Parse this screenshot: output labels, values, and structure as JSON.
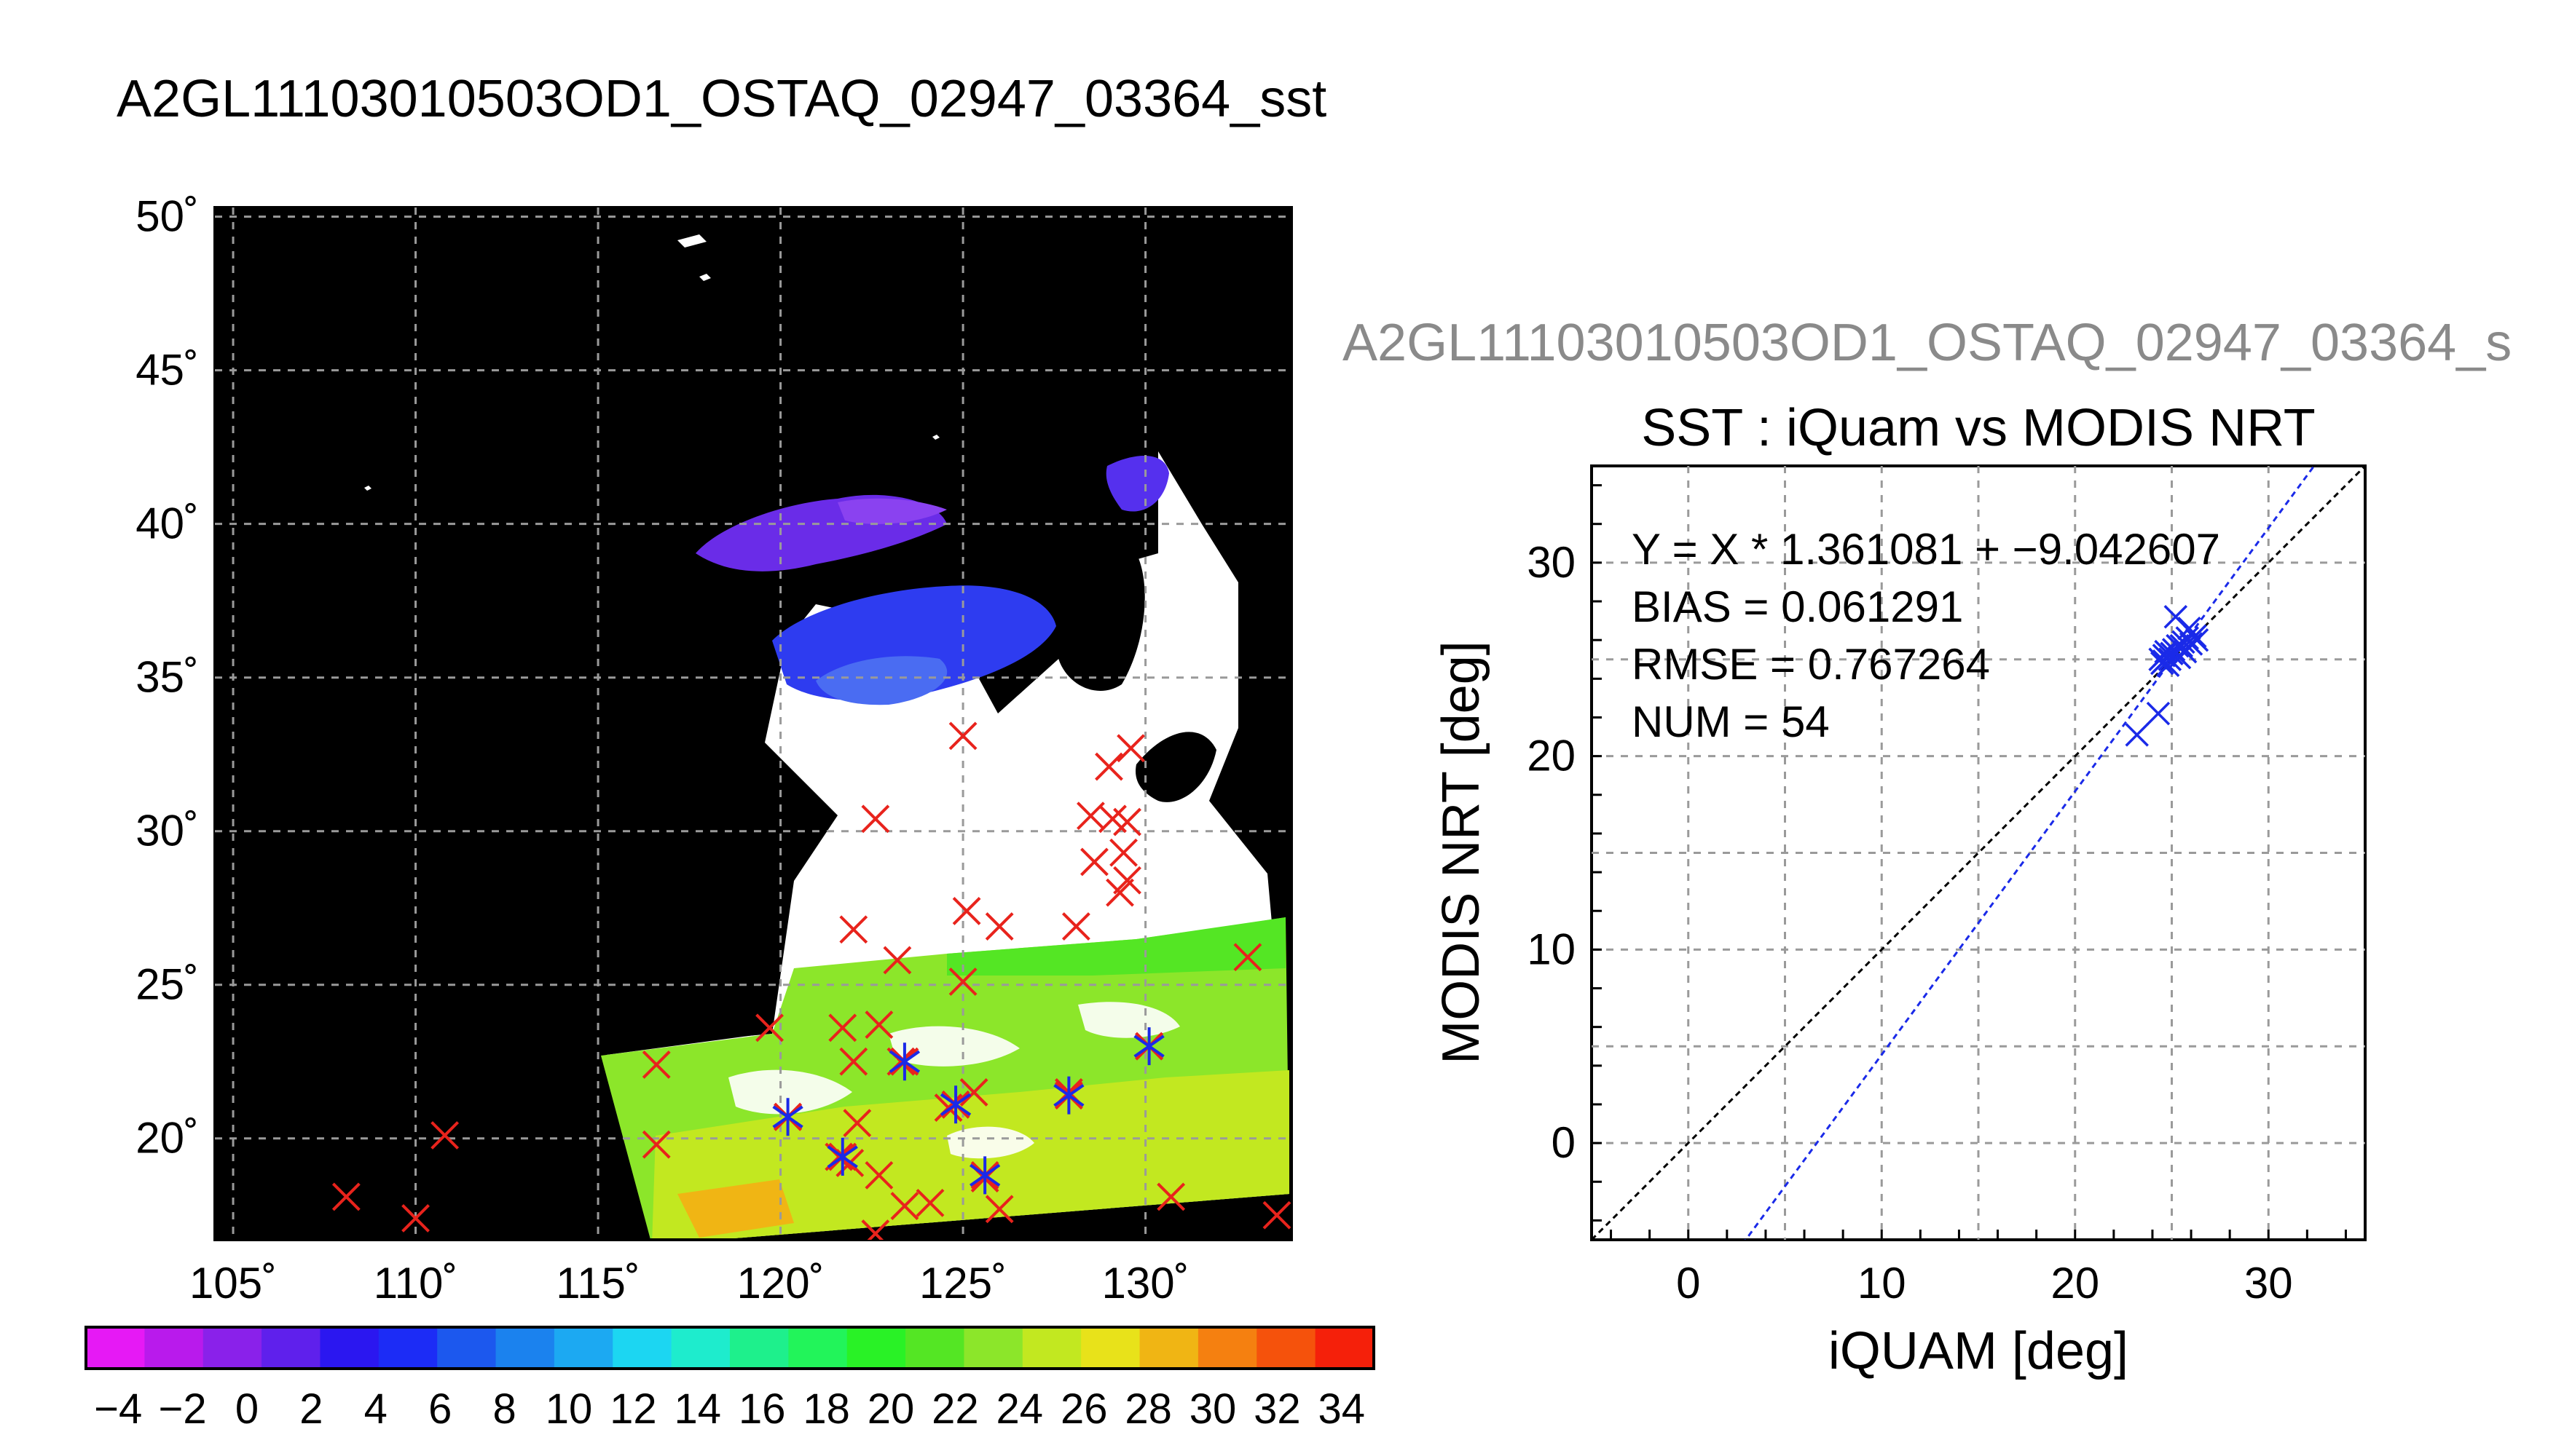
{
  "main_title": "A2GL11103010503OD1_OSTAQ_02947_03364_sst",
  "right_title": "A2GL11103010503OD1_OSTAQ_02947_03364_s",
  "colors": {
    "land": "#000000",
    "cloud": "#ffffff",
    "iquam_marker": "#e8231c",
    "match_marker": "#1a2ae8",
    "fit_line": "#1a2ae8",
    "one_to_one": "#000000",
    "grid": "#9a9a9a"
  },
  "chart_data": [
    {
      "type": "map",
      "lon_ticks": [
        "105˚",
        "110˚",
        "115˚",
        "120˚",
        "125˚",
        "130˚"
      ],
      "lat_ticks": [
        "50˚",
        "45˚",
        "40˚",
        "35˚",
        "30˚",
        "25˚",
        "20˚"
      ],
      "lon_range": [
        104.5,
        134
      ],
      "lat_range": [
        16.7,
        50.3
      ],
      "grid": true,
      "iquam_points": [
        [
          125.0,
          33.1
        ],
        [
          122.6,
          30.4
        ],
        [
          129.0,
          32.1
        ],
        [
          129.6,
          32.7
        ],
        [
          128.5,
          30.5
        ],
        [
          129.1,
          30.4
        ],
        [
          129.5,
          30.3
        ],
        [
          128.6,
          29.0
        ],
        [
          129.4,
          29.3
        ],
        [
          129.3,
          28.0
        ],
        [
          129.5,
          28.4
        ],
        [
          125.1,
          27.4
        ],
        [
          126.0,
          26.9
        ],
        [
          122.0,
          26.8
        ],
        [
          128.1,
          26.9
        ],
        [
          123.2,
          25.8
        ],
        [
          125.0,
          25.1
        ],
        [
          132.8,
          25.9
        ],
        [
          119.7,
          23.6
        ],
        [
          121.7,
          23.6
        ],
        [
          122.7,
          23.7
        ],
        [
          116.6,
          22.4
        ],
        [
          122.0,
          22.5
        ],
        [
          123.3,
          22.5
        ],
        [
          125.3,
          21.5
        ],
        [
          124.6,
          21.0
        ],
        [
          120.2,
          20.7
        ],
        [
          122.1,
          20.5
        ],
        [
          116.6,
          19.8
        ],
        [
          110.8,
          20.1
        ],
        [
          121.6,
          19.4
        ],
        [
          121.9,
          19.2
        ],
        [
          122.7,
          18.8
        ],
        [
          108.1,
          18.1
        ],
        [
          110.0,
          17.4
        ],
        [
          123.4,
          17.8
        ],
        [
          124.1,
          17.9
        ],
        [
          125.6,
          18.7
        ],
        [
          126.0,
          17.7
        ],
        [
          130.7,
          18.1
        ],
        [
          133.6,
          17.5
        ],
        [
          122.6,
          16.9
        ],
        [
          127.9,
          21.5
        ],
        [
          130.1,
          23.0
        ]
      ],
      "matchup_points": [
        [
          120.2,
          20.7
        ],
        [
          121.7,
          19.4
        ],
        [
          123.4,
          22.5
        ],
        [
          124.8,
          21.1
        ],
        [
          125.6,
          18.8
        ],
        [
          127.9,
          21.4
        ],
        [
          130.1,
          23.0
        ]
      ],
      "colorbar": {
        "min": -5,
        "max": 35,
        "tick_labels": [
          "−4",
          "−2",
          "0",
          "2",
          "4",
          "6",
          "8",
          "10",
          "12",
          "14",
          "16",
          "18",
          "20",
          "22",
          "24",
          "26",
          "28",
          "30",
          "32",
          "34"
        ],
        "colors": [
          "#e619f5",
          "#b91aec",
          "#8a21ea",
          "#5f20ec",
          "#2b17f0",
          "#1c2cf6",
          "#1c58ee",
          "#1b82ee",
          "#1ca9f2",
          "#1cd6f2",
          "#1eeccd",
          "#1ef08c",
          "#22f45a",
          "#29f226",
          "#54e624",
          "#8ce62a",
          "#c2e820",
          "#e8e21a",
          "#f0b514",
          "#f58010",
          "#f5520c",
          "#f5200a"
        ]
      }
    },
    {
      "type": "scatter",
      "title": "SST : iQuam vs MODIS NRT",
      "xlabel": "iQUAM [deg]",
      "ylabel": "MODIS NRT [deg]",
      "xlim": [
        -5,
        35
      ],
      "ylim": [
        -5,
        35
      ],
      "x_ticks": [
        "0",
        "10",
        "20",
        "30"
      ],
      "y_ticks": [
        "0",
        "10",
        "20",
        "30"
      ],
      "grid": true,
      "stats": [
        "Y = X * 1.361081 + −9.042607",
        "BIAS = 0.061291",
        "RMSE = 0.767264",
        "NUM = 54"
      ],
      "fit": {
        "slope": 1.361081,
        "intercept": -9.042607
      },
      "points": [
        [
          25.2,
          27.2
        ],
        [
          25.9,
          26.6
        ],
        [
          26.2,
          26.2
        ],
        [
          25.6,
          25.9
        ],
        [
          25.3,
          25.7
        ],
        [
          25.0,
          25.3
        ],
        [
          24.6,
          25.2
        ],
        [
          24.5,
          24.8
        ],
        [
          24.4,
          25.0
        ],
        [
          24.8,
          24.7
        ],
        [
          25.4,
          25.1
        ],
        [
          25.7,
          25.4
        ],
        [
          26.0,
          25.8
        ],
        [
          25.5,
          25.7
        ],
        [
          26.3,
          26.0
        ],
        [
          24.7,
          25.4
        ],
        [
          25.1,
          25.5
        ],
        [
          25.8,
          26.1
        ],
        [
          24.3,
          22.2
        ],
        [
          23.2,
          21.1
        ],
        [
          24.9,
          25.0
        ],
        [
          24.6,
          24.9
        ]
      ]
    }
  ]
}
